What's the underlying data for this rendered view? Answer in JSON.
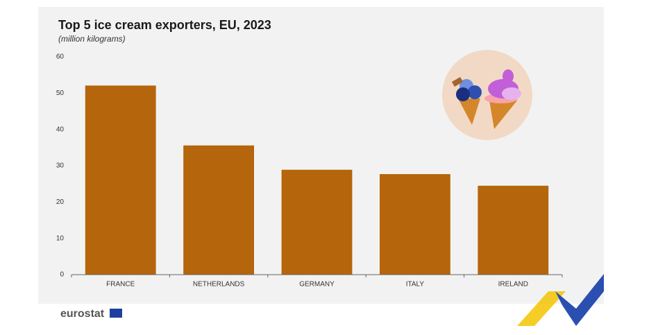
{
  "chart_data": {
    "type": "bar",
    "title": "Top 5 ice cream exporters, EU, 2023",
    "subtitle": "(million kilograms)",
    "categories": [
      "FRANCE",
      "NETHERLANDS",
      "GERMANY",
      "ITALY",
      "IRELAND"
    ],
    "values": [
      52.1,
      35.6,
      28.9,
      27.7,
      24.5
    ],
    "color": "#b5650b",
    "ylim": [
      0,
      60
    ],
    "yticks": [
      0,
      10,
      20,
      30,
      40,
      50,
      60
    ],
    "grid": false
  },
  "brand": "eurostat"
}
